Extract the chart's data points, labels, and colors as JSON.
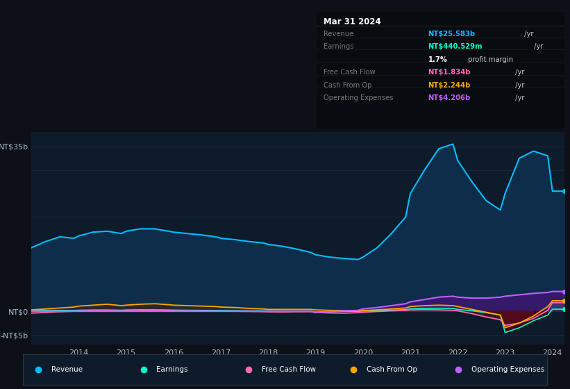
{
  "bg_color": "#0d1117",
  "plot_bg_color": "#0d1b2a",
  "title": "Mar 31 2024",
  "tooltip": {
    "rows": [
      {
        "label": "Revenue",
        "value": "NT$25.583b",
        "unit": " /yr",
        "color": "#00bfff",
        "label_color": "#888888"
      },
      {
        "label": "Earnings",
        "value": "NT$440.529m",
        "unit": " /yr",
        "color": "#00ffcc",
        "label_color": "#888888"
      },
      {
        "label": "",
        "value": "1.7%",
        "unit": " profit margin",
        "color": "#ffffff",
        "label_color": "#888888"
      },
      {
        "label": "Free Cash Flow",
        "value": "NT$1.834b",
        "unit": " /yr",
        "color": "#ff69b4",
        "label_color": "#888888"
      },
      {
        "label": "Cash From Op",
        "value": "NT$2.244b",
        "unit": " /yr",
        "color": "#ffa500",
        "label_color": "#888888"
      },
      {
        "label": "Operating Expenses",
        "value": "NT$4.206b",
        "unit": " /yr",
        "color": "#bf5fff",
        "label_color": "#888888"
      }
    ]
  },
  "years": [
    2013.0,
    2013.3,
    2013.6,
    2013.9,
    2014.0,
    2014.3,
    2014.6,
    2014.9,
    2015.0,
    2015.3,
    2015.6,
    2015.9,
    2016.0,
    2016.3,
    2016.6,
    2016.9,
    2017.0,
    2017.3,
    2017.6,
    2017.9,
    2018.0,
    2018.3,
    2018.6,
    2018.9,
    2019.0,
    2019.3,
    2019.6,
    2019.9,
    2020.0,
    2020.3,
    2020.6,
    2020.9,
    2021.0,
    2021.3,
    2021.6,
    2021.9,
    2022.0,
    2022.3,
    2022.6,
    2022.9,
    2023.0,
    2023.3,
    2023.6,
    2023.9,
    2024.0,
    2024.25
  ],
  "revenue": [
    13.5,
    14.8,
    15.8,
    15.5,
    16.0,
    16.8,
    17.0,
    16.5,
    17.0,
    17.5,
    17.5,
    17.0,
    16.8,
    16.5,
    16.2,
    15.8,
    15.5,
    15.2,
    14.8,
    14.5,
    14.2,
    13.8,
    13.2,
    12.5,
    12.0,
    11.5,
    11.2,
    11.0,
    11.5,
    13.5,
    16.5,
    20.0,
    25.0,
    30.0,
    34.5,
    35.5,
    32.0,
    27.5,
    23.5,
    21.5,
    25.0,
    32.5,
    34.0,
    33.0,
    25.5,
    25.5
  ],
  "earnings": [
    0.15,
    0.2,
    0.2,
    0.18,
    0.22,
    0.28,
    0.28,
    0.22,
    0.28,
    0.32,
    0.32,
    0.28,
    0.25,
    0.22,
    0.2,
    0.18,
    0.18,
    0.15,
    0.12,
    0.1,
    0.08,
    0.05,
    0.02,
    -0.02,
    -0.15,
    -0.08,
    -0.02,
    0.0,
    0.05,
    0.15,
    0.25,
    0.35,
    0.5,
    0.6,
    0.65,
    0.6,
    0.4,
    0.1,
    -0.3,
    -0.8,
    -4.5,
    -3.5,
    -2.0,
    -0.8,
    0.44,
    0.44
  ],
  "free_cash_flow": [
    -0.4,
    -0.25,
    -0.1,
    0.0,
    0.08,
    0.15,
    0.18,
    0.1,
    0.12,
    0.18,
    0.22,
    0.18,
    0.12,
    0.1,
    0.08,
    0.05,
    0.03,
    0.0,
    -0.03,
    -0.08,
    -0.12,
    -0.15,
    -0.1,
    -0.08,
    -0.25,
    -0.35,
    -0.4,
    -0.3,
    -0.2,
    -0.05,
    0.1,
    0.2,
    0.3,
    0.35,
    0.3,
    0.2,
    0.1,
    -0.5,
    -1.2,
    -1.8,
    -3.0,
    -2.5,
    -1.5,
    0.2,
    1.834,
    1.834
  ],
  "cash_from_op": [
    0.3,
    0.5,
    0.7,
    0.9,
    1.1,
    1.3,
    1.5,
    1.2,
    1.3,
    1.5,
    1.6,
    1.4,
    1.3,
    1.2,
    1.1,
    1.0,
    0.9,
    0.8,
    0.6,
    0.5,
    0.4,
    0.4,
    0.4,
    0.4,
    0.3,
    0.2,
    0.15,
    0.1,
    0.15,
    0.3,
    0.5,
    0.7,
    1.0,
    1.2,
    1.3,
    1.2,
    1.0,
    0.4,
    -0.2,
    -0.8,
    -3.5,
    -2.5,
    -1.0,
    1.0,
    2.244,
    2.244
  ],
  "operating_expenses": [
    0.0,
    0.0,
    0.0,
    0.0,
    0.0,
    0.0,
    0.0,
    0.0,
    0.0,
    0.0,
    0.0,
    0.0,
    0.0,
    0.0,
    0.0,
    0.0,
    0.0,
    0.0,
    0.0,
    0.0,
    0.0,
    0.0,
    0.0,
    0.0,
    -0.3,
    -0.1,
    0.1,
    0.2,
    0.5,
    0.8,
    1.2,
    1.6,
    2.0,
    2.5,
    3.0,
    3.2,
    3.0,
    2.8,
    2.8,
    3.0,
    3.2,
    3.5,
    3.8,
    4.0,
    4.206,
    4.206
  ],
  "revenue_color": "#00bfff",
  "revenue_fill": "#0d2d4a",
  "earnings_color": "#00ffcc",
  "free_cash_flow_color": "#ff69b4",
  "cash_from_op_color": "#ffa500",
  "operating_expenses_color": "#bf5fff",
  "operating_expenses_fill": "#3a1870",
  "cash_from_op_fill": "#3a3a3a",
  "grid_color": "#1a2d40",
  "tick_color": "#aabbcc",
  "ytick_labels": [
    "NT$35b",
    "NT$0",
    "-NT$5b"
  ],
  "ytick_values": [
    35,
    0,
    -5
  ],
  "xticks": [
    2014,
    2015,
    2016,
    2017,
    2018,
    2019,
    2020,
    2021,
    2022,
    2023,
    2024
  ],
  "legend_items": [
    {
      "label": "Revenue",
      "color": "#00bfff"
    },
    {
      "label": "Earnings",
      "color": "#00ffcc"
    },
    {
      "label": "Free Cash Flow",
      "color": "#ff69b4"
    },
    {
      "label": "Cash From Op",
      "color": "#ffa500"
    },
    {
      "label": "Operating Expenses",
      "color": "#bf5fff"
    }
  ]
}
